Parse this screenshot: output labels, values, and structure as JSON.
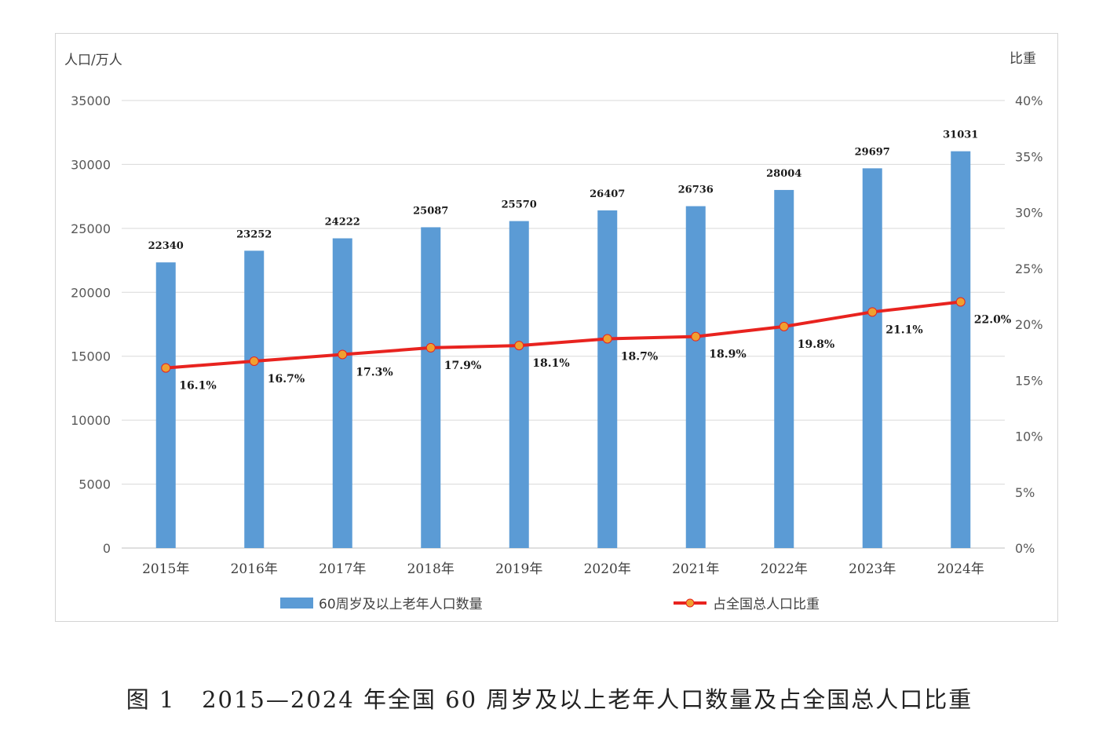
{
  "chart_data": {
    "type": "bar",
    "categories": [
      "2015年",
      "2016年",
      "2017年",
      "2018年",
      "2019年",
      "2020年",
      "2021年",
      "2022年",
      "2023年",
      "2024年"
    ],
    "series": [
      {
        "name": "60周岁及以上老年人口数量",
        "type": "bar",
        "axis": "left",
        "color": "#5b9bd5",
        "values": [
          22340,
          23252,
          24222,
          25087,
          25570,
          26407,
          26736,
          28004,
          29697,
          31031
        ],
        "labels": [
          "22340",
          "23252",
          "24222",
          "25087",
          "25570",
          "26407",
          "26736",
          "28004",
          "29697",
          "31031"
        ]
      },
      {
        "name": "占全国总人口比重",
        "type": "line",
        "axis": "right",
        "color": "#e8231f",
        "marker_color": "#f0a030",
        "values": [
          16.1,
          16.7,
          17.3,
          17.9,
          18.1,
          18.7,
          18.9,
          19.8,
          21.1,
          22.0
        ],
        "labels": [
          "16.1%",
          "16.7%",
          "17.3%",
          "17.9%",
          "18.1%",
          "18.7%",
          "18.9%",
          "19.8%",
          "21.1%",
          "22.0%"
        ]
      }
    ],
    "ylabel": "人口/万人",
    "ylabel_right": "比重",
    "ylim": [
      0,
      35000
    ],
    "yticks": [
      "0",
      "5000",
      "10000",
      "15000",
      "20000",
      "25000",
      "30000",
      "35000"
    ],
    "ylim_right": [
      0,
      40
    ],
    "yticks_right": [
      "0%",
      "5%",
      "10%",
      "15%",
      "20%",
      "25%",
      "30%",
      "35%",
      "40%"
    ],
    "grid": true,
    "legend_position": "bottom"
  },
  "caption": "图 1   2015—2024 年全国 60 周岁及以上老年人口数量及占全国总人口比重"
}
